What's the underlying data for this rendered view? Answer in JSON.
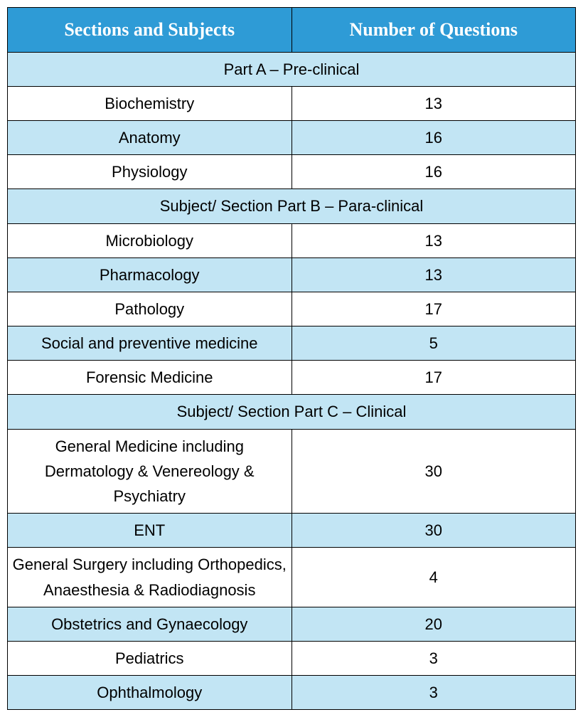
{
  "colors": {
    "header_bg": "#2e9bd6",
    "header_text": "#ffffff",
    "row_alt_bg": "#c2e5f4",
    "row_bg": "#ffffff",
    "border": "#000000",
    "text": "#000000"
  },
  "columns": [
    "Sections and Subjects",
    "Number of Questions"
  ],
  "rows": [
    {
      "type": "section",
      "label": "Part A – Pre-clinical"
    },
    {
      "type": "data",
      "subject": "Biochemistry",
      "questions": 13
    },
    {
      "type": "data",
      "subject": "Anatomy",
      "questions": 16
    },
    {
      "type": "data",
      "subject": "Physiology",
      "questions": 16
    },
    {
      "type": "section",
      "label": "Subject/ Section Part B – Para-clinical"
    },
    {
      "type": "data",
      "subject": "Microbiology",
      "questions": 13
    },
    {
      "type": "data",
      "subject": "Pharmacology",
      "questions": 13
    },
    {
      "type": "data",
      "subject": "Pathology",
      "questions": 17
    },
    {
      "type": "data",
      "subject": "Social and preventive medicine",
      "questions": 5
    },
    {
      "type": "data",
      "subject": "Forensic Medicine",
      "questions": 17
    },
    {
      "type": "section",
      "label": "Subject/ Section Part C – Clinical"
    },
    {
      "type": "data",
      "subject": "General Medicine including Dermatology & Venereology & Psychiatry",
      "questions": 30
    },
    {
      "type": "data",
      "subject": "ENT",
      "questions": 30
    },
    {
      "type": "data",
      "subject": "General Surgery including Orthopedics, Anaesthesia & Radiodiagnosis",
      "questions": 4
    },
    {
      "type": "data",
      "subject": "Obstetrics and Gynaecology",
      "questions": 20
    },
    {
      "type": "data",
      "subject": "Pediatrics",
      "questions": 3
    },
    {
      "type": "data",
      "subject": "Ophthalmology",
      "questions": 3
    }
  ]
}
